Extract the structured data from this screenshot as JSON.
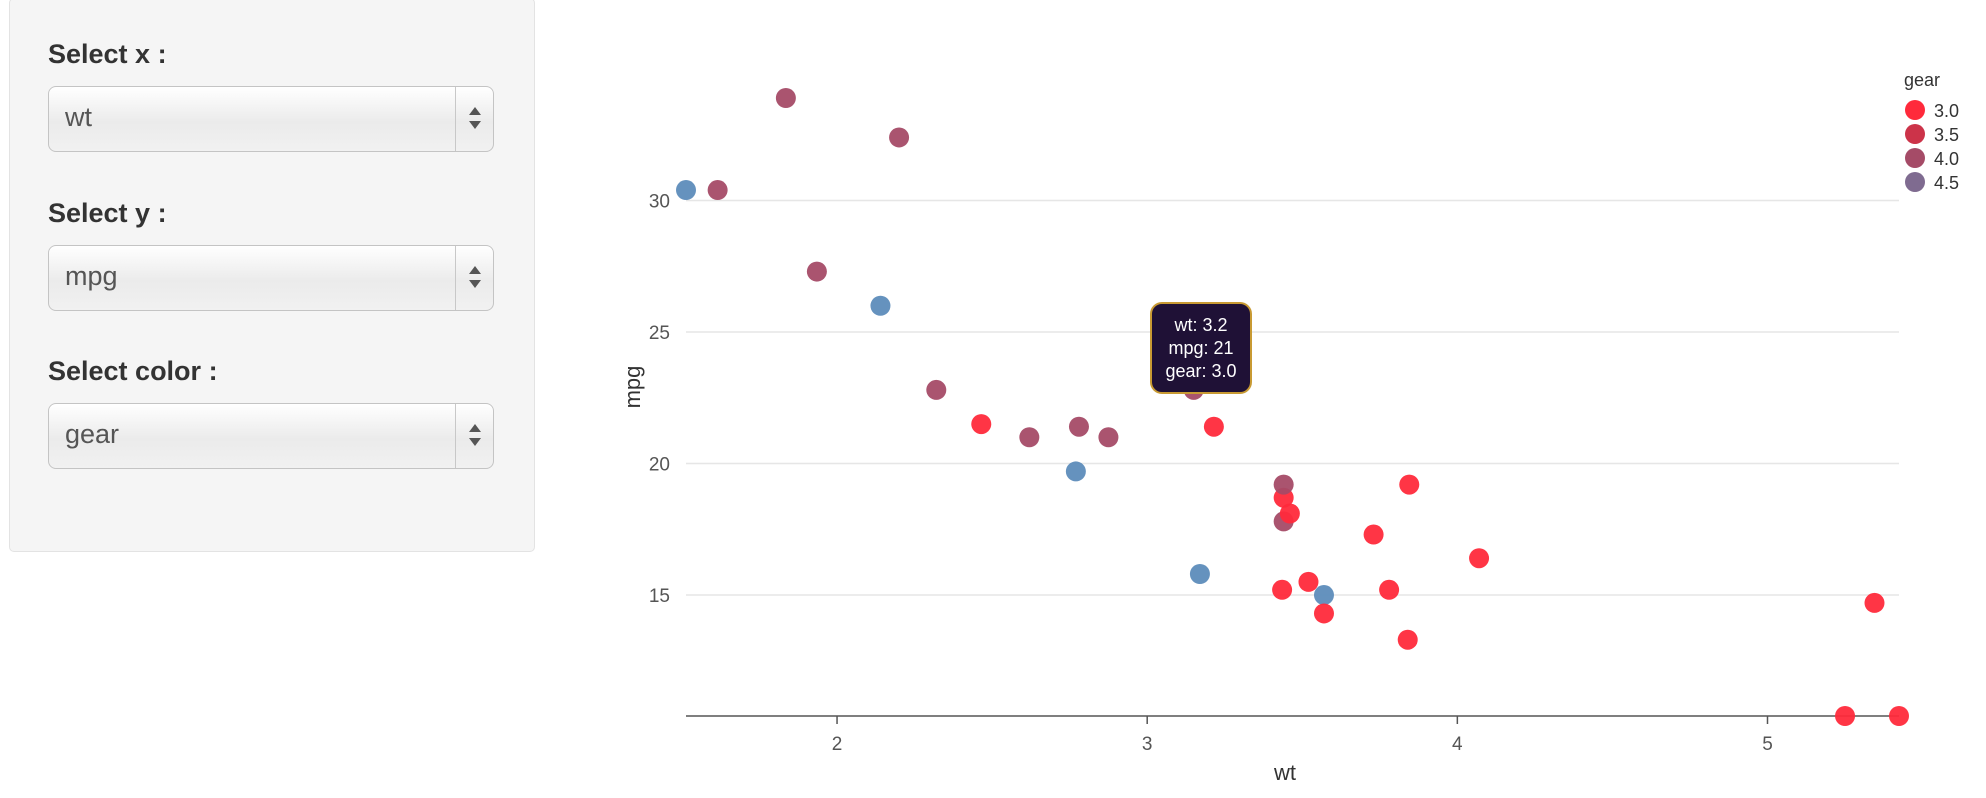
{
  "controls": [
    {
      "label": "Select x :",
      "value": "wt"
    },
    {
      "label": "Select y :",
      "value": "mpg"
    },
    {
      "label": "Select color :",
      "value": "gear"
    }
  ],
  "tooltip": {
    "line1": "wt: 3.2",
    "line2": "mpg: 21",
    "line3": "gear: 3.0"
  },
  "chart_data": {
    "type": "scatter",
    "xlabel": "wt",
    "ylabel": "mpg",
    "xlim": [
      1.513,
      5.424
    ],
    "ylim": [
      10.4,
      33.9
    ],
    "xticks": [
      2,
      3,
      4,
      5
    ],
    "yticks": [
      15,
      20,
      25,
      30
    ],
    "grid": "horizontal",
    "legend": {
      "title": "gear",
      "placement": "top-right",
      "entries": [
        {
          "label": "3.0",
          "color": "#ff2a3b"
        },
        {
          "label": "3.5",
          "color": "#cc3349"
        },
        {
          "label": "4.0",
          "color": "#a54b67"
        },
        {
          "label": "4.5",
          "color": "#7f6b90"
        }
      ]
    },
    "colors": {
      "3": "#ff2a3b",
      "4": "#a54b67",
      "5": "#5d8cba"
    },
    "points": [
      {
        "x": 1.513,
        "y": 30.4,
        "gear": 5
      },
      {
        "x": 1.615,
        "y": 30.4,
        "gear": 4
      },
      {
        "x": 1.835,
        "y": 33.9,
        "gear": 4
      },
      {
        "x": 1.935,
        "y": 27.3,
        "gear": 4
      },
      {
        "x": 2.14,
        "y": 26.0,
        "gear": 5
      },
      {
        "x": 2.2,
        "y": 32.4,
        "gear": 4
      },
      {
        "x": 2.32,
        "y": 22.8,
        "gear": 4
      },
      {
        "x": 2.465,
        "y": 21.5,
        "gear": 3
      },
      {
        "x": 2.62,
        "y": 21.0,
        "gear": 4
      },
      {
        "x": 2.77,
        "y": 19.7,
        "gear": 5
      },
      {
        "x": 2.78,
        "y": 21.4,
        "gear": 4
      },
      {
        "x": 2.875,
        "y": 21.0,
        "gear": 4
      },
      {
        "x": 3.15,
        "y": 22.8,
        "gear": 4
      },
      {
        "x": 3.17,
        "y": 15.8,
        "gear": 5
      },
      {
        "x": 3.215,
        "y": 21.4,
        "gear": 3
      },
      {
        "x": 3.435,
        "y": 15.2,
        "gear": 3
      },
      {
        "x": 3.44,
        "y": 18.7,
        "gear": 3
      },
      {
        "x": 3.44,
        "y": 19.2,
        "gear": 4
      },
      {
        "x": 3.44,
        "y": 17.8,
        "gear": 4
      },
      {
        "x": 3.46,
        "y": 18.1,
        "gear": 3
      },
      {
        "x": 3.52,
        "y": 15.5,
        "gear": 3
      },
      {
        "x": 3.57,
        "y": 15.0,
        "gear": 5
      },
      {
        "x": 3.57,
        "y": 14.3,
        "gear": 3
      },
      {
        "x": 3.73,
        "y": 17.3,
        "gear": 3
      },
      {
        "x": 3.78,
        "y": 15.2,
        "gear": 3
      },
      {
        "x": 3.84,
        "y": 13.3,
        "gear": 3
      },
      {
        "x": 3.845,
        "y": 19.2,
        "gear": 3
      },
      {
        "x": 4.07,
        "y": 16.4,
        "gear": 3
      },
      {
        "x": 5.25,
        "y": 10.4,
        "gear": 3
      },
      {
        "x": 5.345,
        "y": 14.7,
        "gear": 3
      },
      {
        "x": 5.424,
        "y": 10.4,
        "gear": 3
      }
    ]
  }
}
